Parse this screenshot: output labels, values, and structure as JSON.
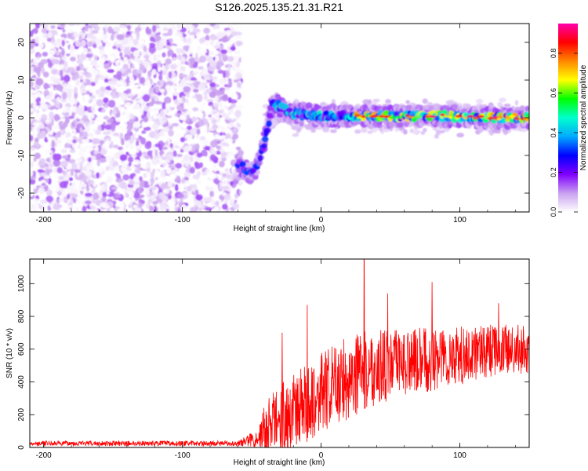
{
  "figure": {
    "title": "S126.2025.135.21.31.R21"
  },
  "chart_data": [
    {
      "type": "heatmap",
      "xlabel": "Height of straight line (km)",
      "ylabel": "Frequency (Hz)",
      "xlim": [
        -210,
        150
      ],
      "ylim": [
        -25,
        25
      ],
      "x_ticks": [
        -200,
        -100,
        0,
        100
      ],
      "y_ticks": [
        -20,
        -10,
        0,
        10,
        20
      ],
      "colorbar": {
        "label": "Normalized spectral amplitude",
        "range": [
          0,
          0.95
        ],
        "ticks": [
          0.0,
          0.2,
          0.4,
          0.6,
          0.8
        ],
        "colormap": [
          "#ffffff",
          "#c9a0f0",
          "#7f00ff",
          "#0000ff",
          "#00aaff",
          "#00ffcc",
          "#00ff00",
          "#ffff00",
          "#ff8800",
          "#ff0000",
          "#ff00aa"
        ]
      },
      "regions": [
        {
          "x": [
            -210,
            -58
          ],
          "y": [
            -25,
            25
          ],
          "amplitude": [
            0.0,
            0.15
          ]
        },
        {
          "x": [
            -58,
            -40
          ],
          "y": [
            -17,
            -8
          ],
          "amplitude": [
            0.1,
            0.35
          ]
        },
        {
          "x": [
            -40,
            -35
          ],
          "y": [
            -10,
            5
          ],
          "amplitude": [
            0.05,
            0.2
          ]
        },
        {
          "x": [
            -35,
            150
          ],
          "y": [
            -2,
            3
          ],
          "amplitude": [
            0.15,
            0.9
          ]
        }
      ],
      "ridge": {
        "x": [
          -60,
          -50,
          -45,
          -40,
          -35,
          -30,
          -20,
          0,
          20,
          40,
          60,
          80,
          100,
          120,
          150
        ],
        "y": [
          -12,
          -15,
          -12,
          -5,
          4,
          3,
          1,
          0.5,
          0.5,
          0.3,
          0.5,
          0.5,
          0.3,
          0,
          0
        ]
      }
    },
    {
      "type": "line",
      "xlabel": "Height of straight line (km)",
      "ylabel": "SNR (10 * v/v)",
      "xlim": [
        -210,
        150
      ],
      "ylim": [
        0,
        1150
      ],
      "x_ticks": [
        -200,
        -100,
        0,
        100
      ],
      "y_ticks": [
        0,
        200,
        400,
        600,
        800,
        1000
      ],
      "series_color": "#ff0000",
      "envelope": {
        "x": [
          -210,
          -60,
          -45,
          -40,
          -30,
          -20,
          0,
          20,
          40,
          60,
          80,
          100,
          120,
          150
        ],
        "baseline": [
          25,
          25,
          60,
          120,
          180,
          220,
          330,
          430,
          490,
          520,
          540,
          560,
          590,
          600
        ],
        "spread": [
          15,
          15,
          60,
          180,
          220,
          230,
          250,
          260,
          230,
          200,
          200,
          180,
          160,
          150
        ]
      },
      "peaks": [
        {
          "x": -28,
          "y": 700
        },
        {
          "x": -10,
          "y": 870
        },
        {
          "x": 31,
          "y": 1150
        },
        {
          "x": 48,
          "y": 940
        },
        {
          "x": 80,
          "y": 1010
        },
        {
          "x": 128,
          "y": 880
        }
      ]
    }
  ]
}
